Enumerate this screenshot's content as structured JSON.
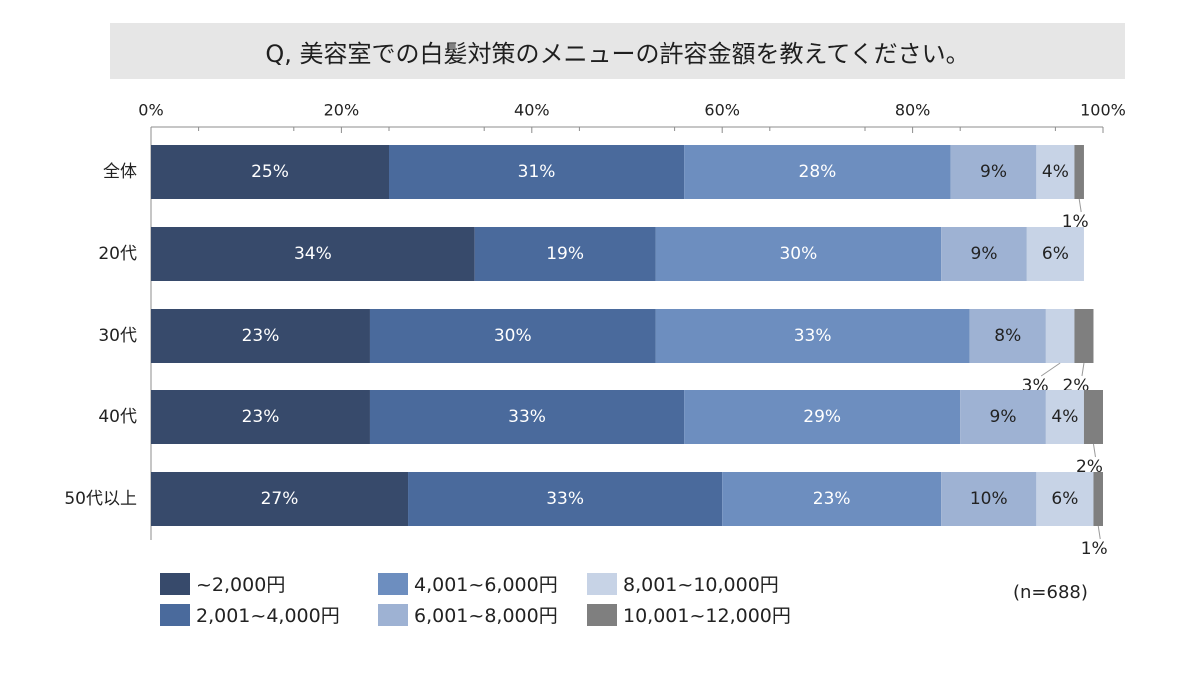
{
  "title": "Q, 美容室での白髪対策のメニューの許容金額を教えてください。",
  "sample_note": "(n=688)",
  "chart_data": {
    "type": "bar",
    "orientation": "horizontal",
    "stacked": true,
    "xlim": [
      0,
      100
    ],
    "x_ticks": [
      "0%",
      "20%",
      "40%",
      "60%",
      "80%",
      "100%"
    ],
    "categories": [
      "全体",
      "20代",
      "30代",
      "40代",
      "50代以上"
    ],
    "series": [
      {
        "name": "~2,000円",
        "color": "#374a6b",
        "values": [
          25,
          34,
          23,
          23,
          27
        ],
        "labels": [
          "25%",
          "34%",
          "23%",
          "23%",
          "27%"
        ]
      },
      {
        "name": "2,001~4,000円",
        "color": "#4a6a9c",
        "values": [
          31,
          19,
          30,
          33,
          33
        ],
        "labels": [
          "31%",
          "19%",
          "30%",
          "33%",
          "33%"
        ]
      },
      {
        "name": "4,001~6,000円",
        "color": "#6d8ebf",
        "values": [
          28,
          30,
          33,
          29,
          23
        ],
        "labels": [
          "28%",
          "30%",
          "33%",
          "29%",
          "23%"
        ]
      },
      {
        "name": "6,001~8,000円",
        "color": "#9eb2d3",
        "values": [
          9,
          9,
          8,
          9,
          10
        ],
        "labels": [
          "9%",
          "9%",
          "8%",
          "9%",
          "10%"
        ]
      },
      {
        "name": "8,001~10,000円",
        "color": "#c7d3e6",
        "values": [
          4,
          6,
          3,
          4,
          6
        ],
        "labels": [
          "4%",
          "6%",
          "3%",
          "4%",
          "6%"
        ]
      },
      {
        "name": "10,001~12,000円",
        "color": "#7f7f7f",
        "values": [
          1,
          0,
          2,
          2,
          1
        ],
        "labels": [
          "1%",
          "",
          "2%",
          "2%",
          "1%"
        ]
      }
    ]
  },
  "legend_items": [
    "~2,000円",
    "4,001~6,000円",
    "8,001~10,000円",
    "2,001~4,000円",
    "6,001~8,000円",
    "10,001~12,000円"
  ]
}
